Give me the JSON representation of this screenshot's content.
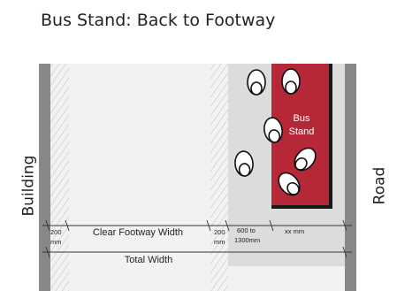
{
  "title": "Bus Stand: Back to Footway",
  "labels": {
    "building": "Building",
    "road": "Road",
    "bus_stand_line1": "Bus",
    "bus_stand_line2": "Stand"
  },
  "dimensions": {
    "left_margin_line1": "200",
    "left_margin_line2": "mm",
    "clear_footway": "Clear Footway Width",
    "right_margin_line1": "200",
    "right_margin_line2": "mm",
    "queue_zone_line1": "600 to",
    "queue_zone_line2": "1300mm",
    "stand_width": "xx mm",
    "total": "Total Width"
  },
  "colors": {
    "bus_stand": "#b62837",
    "wall": "#888888",
    "footway": "#f2f2f2",
    "queue_zone": "#dcdcdc"
  }
}
